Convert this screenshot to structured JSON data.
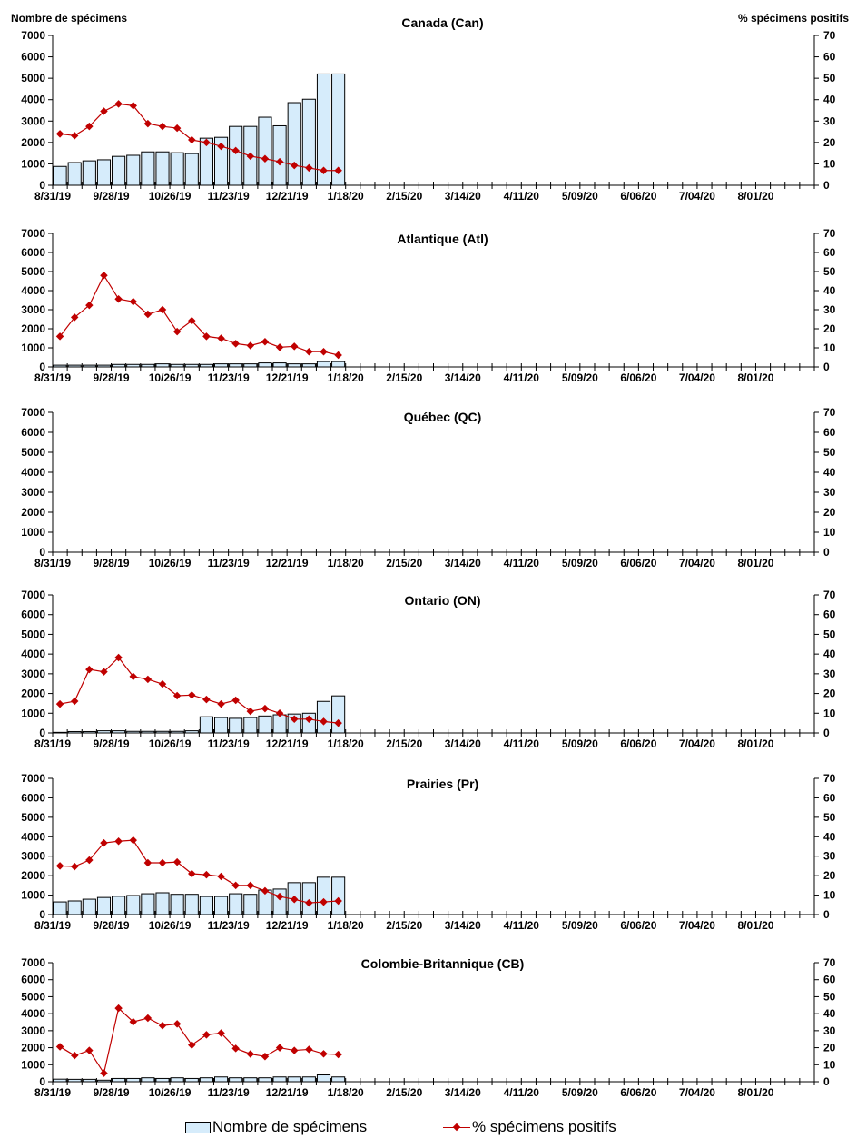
{
  "y_left_label": "Nombre de spécimens",
  "y_right_label": "% spécimens positifs",
  "legend": {
    "bars": "Nombre de spécimens",
    "line": "% spécimens positifs"
  },
  "colors": {
    "bar_fill": "#d6ecfb",
    "bar_stroke": "#000000",
    "line": "#c00000"
  },
  "chart_data": [
    {
      "type": "bar+line",
      "title": "Canada (Can)",
      "x_tick_labels": [
        "8/31/19",
        "9/28/19",
        "10/26/19",
        "11/23/19",
        "12/21/19",
        "1/18/20",
        "2/15/20",
        "3/14/20",
        "4/11/20",
        "5/09/20",
        "6/06/20",
        "7/04/20",
        "8/01/20"
      ],
      "weeks_total": 52,
      "ylim_left": [
        0,
        7000
      ],
      "yticks_left": [
        0,
        1000,
        2000,
        3000,
        4000,
        5000,
        6000,
        7000
      ],
      "ylim_right": [
        0,
        70
      ],
      "yticks_right": [
        0,
        10,
        20,
        30,
        40,
        50,
        60,
        70
      ],
      "series": [
        {
          "name": "Nombre de spécimens",
          "type": "bar",
          "values": [
            880,
            1060,
            1140,
            1190,
            1350,
            1400,
            1560,
            1560,
            1520,
            1480,
            2200,
            2240,
            2750,
            2750,
            3180,
            2780,
            3860,
            4020,
            5200,
            5200
          ]
        },
        {
          "name": "% spécimens positifs",
          "type": "line",
          "values": [
            24,
            23.2,
            27.5,
            34.6,
            38,
            37.2,
            28.8,
            27.5,
            26.7,
            21.2,
            20,
            18.2,
            16.2,
            13.6,
            12.4,
            11,
            9.3,
            8.1,
            6.9,
            6.9
          ]
        }
      ]
    },
    {
      "type": "bar+line",
      "title": "Atlantique (Atl)",
      "x_tick_labels": [
        "8/31/19",
        "9/28/19",
        "10/26/19",
        "11/23/19",
        "12/21/19",
        "1/18/20",
        "2/15/20",
        "3/14/20",
        "4/11/20",
        "5/09/20",
        "6/06/20",
        "7/04/20",
        "8/01/20"
      ],
      "weeks_total": 52,
      "ylim_left": [
        0,
        7000
      ],
      "yticks_left": [
        0,
        1000,
        2000,
        3000,
        4000,
        5000,
        6000,
        7000
      ],
      "ylim_right": [
        0,
        70
      ],
      "yticks_right": [
        0,
        10,
        20,
        30,
        40,
        50,
        60,
        70
      ],
      "series": [
        {
          "name": "Nombre de spécimens",
          "type": "bar",
          "values": [
            90,
            90,
            90,
            90,
            130,
            130,
            130,
            160,
            130,
            130,
            130,
            160,
            160,
            160,
            210,
            210,
            160,
            160,
            280,
            280
          ]
        },
        {
          "name": "% spécimens positifs",
          "type": "line",
          "values": [
            16,
            26,
            32.3,
            48,
            35.6,
            34.2,
            27.6,
            30,
            18.5,
            24.2,
            16,
            15,
            12.2,
            11.2,
            13.2,
            10.3,
            10.8,
            8,
            8,
            6.2
          ]
        }
      ]
    },
    {
      "type": "bar+line",
      "title": "Québec (QC)",
      "x_tick_labels": [
        "8/31/19",
        "9/28/19",
        "10/26/19",
        "11/23/19",
        "12/21/19",
        "1/18/20",
        "2/15/20",
        "3/14/20",
        "4/11/20",
        "5/09/20",
        "6/06/20",
        "7/04/20",
        "8/01/20"
      ],
      "weeks_total": 52,
      "ylim_left": [
        0,
        7000
      ],
      "yticks_left": [
        0,
        1000,
        2000,
        3000,
        4000,
        5000,
        6000,
        7000
      ],
      "ylim_right": [
        0,
        70
      ],
      "yticks_right": [
        0,
        10,
        20,
        30,
        40,
        50,
        60,
        70
      ],
      "series": [
        {
          "name": "Nombre de spécimens",
          "type": "bar",
          "values": []
        },
        {
          "name": "% spécimens positifs",
          "type": "line",
          "values": []
        }
      ]
    },
    {
      "type": "bar+line",
      "title": "Ontario (ON)",
      "x_tick_labels": [
        "8/31/19",
        "9/28/19",
        "10/26/19",
        "11/23/19",
        "12/21/19",
        "1/18/20",
        "2/15/20",
        "3/14/20",
        "4/11/20",
        "5/09/20",
        "6/06/20",
        "7/04/20",
        "8/01/20"
      ],
      "weeks_total": 52,
      "ylim_left": [
        0,
        7000
      ],
      "yticks_left": [
        0,
        1000,
        2000,
        3000,
        4000,
        5000,
        6000,
        7000
      ],
      "ylim_right": [
        0,
        70
      ],
      "yticks_right": [
        0,
        10,
        20,
        30,
        40,
        50,
        60,
        70
      ],
      "series": [
        {
          "name": "Nombre de spécimens",
          "type": "bar",
          "values": [
            30,
            70,
            70,
            110,
            110,
            80,
            80,
            80,
            80,
            110,
            820,
            780,
            740,
            780,
            860,
            920,
            960,
            1000,
            1600,
            1880
          ]
        },
        {
          "name": "% spécimens positifs",
          "type": "line",
          "values": [
            14.7,
            16.1,
            32.2,
            31,
            38.2,
            28.6,
            27.2,
            24.8,
            18.9,
            19.2,
            17,
            14.7,
            16.6,
            11,
            12.4,
            10,
            7,
            7,
            5.8,
            5
          ]
        }
      ]
    },
    {
      "type": "bar+line",
      "title": "Prairies (Pr)",
      "x_tick_labels": [
        "8/31/19",
        "9/28/19",
        "10/26/19",
        "11/23/19",
        "12/21/19",
        "1/18/20",
        "2/15/20",
        "3/14/20",
        "4/11/20",
        "5/09/20",
        "6/06/20",
        "7/04/20",
        "8/01/20"
      ],
      "weeks_total": 52,
      "ylim_left": [
        0,
        7000
      ],
      "yticks_left": [
        0,
        1000,
        2000,
        3000,
        4000,
        5000,
        6000,
        7000
      ],
      "ylim_right": [
        0,
        70
      ],
      "yticks_right": [
        0,
        10,
        20,
        30,
        40,
        50,
        60,
        70
      ],
      "series": [
        {
          "name": "Nombre de spécimens",
          "type": "bar",
          "values": [
            650,
            700,
            790,
            880,
            940,
            980,
            1070,
            1120,
            1040,
            1040,
            930,
            930,
            1070,
            1040,
            1260,
            1310,
            1640,
            1640,
            1920,
            1920
          ]
        },
        {
          "name": "% spécimens positifs",
          "type": "line",
          "values": [
            25,
            24.7,
            28,
            36.8,
            37.7,
            38.2,
            26.6,
            26.6,
            27,
            21,
            20.5,
            19.6,
            15,
            15,
            12.2,
            9.3,
            7.8,
            6,
            6.5,
            7
          ]
        }
      ]
    },
    {
      "type": "bar+line",
      "title": "Colombie-Britannique (CB)",
      "x_tick_labels": [
        "8/31/19",
        "9/28/19",
        "10/26/19",
        "11/23/19",
        "12/21/19",
        "1/18/20",
        "2/15/20",
        "3/14/20",
        "4/11/20",
        "5/09/20",
        "6/06/20",
        "7/04/20",
        "8/01/20"
      ],
      "weeks_total": 52,
      "ylim_left": [
        0,
        7000
      ],
      "yticks_left": [
        0,
        1000,
        2000,
        3000,
        4000,
        5000,
        6000,
        7000
      ],
      "ylim_right": [
        0,
        70
      ],
      "yticks_right": [
        0,
        10,
        20,
        30,
        40,
        50,
        60,
        70
      ],
      "series": [
        {
          "name": "Nombre de spécimens",
          "type": "bar",
          "values": [
            150,
            140,
            140,
            90,
            190,
            190,
            230,
            190,
            230,
            190,
            230,
            280,
            230,
            230,
            230,
            280,
            280,
            280,
            400,
            280
          ]
        },
        {
          "name": "% spécimens positifs",
          "type": "line",
          "values": [
            20.6,
            15.4,
            18.4,
            5,
            43.2,
            35.2,
            37.4,
            33,
            34,
            21.6,
            27.6,
            28.6,
            19.6,
            16.3,
            14.8,
            20,
            18.4,
            19,
            16.4,
            16
          ]
        }
      ]
    }
  ]
}
